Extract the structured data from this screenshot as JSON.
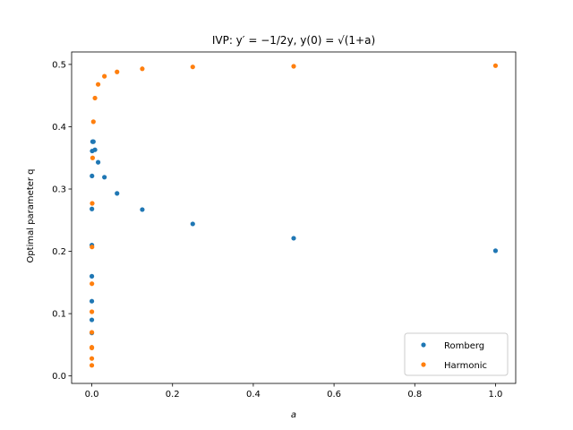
{
  "chart_data": {
    "type": "scatter",
    "title": "IVP: y′ = −1/2y, y(0) = √(1+a)",
    "xlabel": "a",
    "ylabel": "Optimal parameter q",
    "xlim": [
      -0.05,
      1.05
    ],
    "ylim": [
      -0.012,
      0.52
    ],
    "xticks": [
      0.0,
      0.2,
      0.4,
      0.6,
      0.8,
      1.0
    ],
    "xtick_labels": [
      "0.0",
      "0.2",
      "0.4",
      "0.6",
      "0.8",
      "1.0"
    ],
    "yticks": [
      0.0,
      0.1,
      0.2,
      0.3,
      0.4,
      0.5
    ],
    "ytick_labels": [
      "0.0",
      "0.1",
      "0.2",
      "0.3",
      "0.4",
      "0.5"
    ],
    "grid": false,
    "legend_position": "bottom-right",
    "series": [
      {
        "name": "Romberg",
        "color": "#1f77b4",
        "x": [
          1.0,
          0.5,
          0.25,
          0.125,
          0.0625,
          0.03125,
          0.015625,
          0.0078125,
          0.00390625,
          0.001953125,
          0.0009765625,
          0.00048828125,
          0.000244140625,
          0.0001220703125,
          6.103515625e-05,
          3.0517578125e-05,
          1.52587890625e-05,
          7.62939453125e-06
        ],
        "values": [
          0.201,
          0.221,
          0.244,
          0.267,
          0.293,
          0.319,
          0.343,
          0.363,
          0.376,
          0.376,
          0.361,
          0.321,
          0.268,
          0.21,
          0.16,
          0.12,
          0.09,
          0.069
        ]
      },
      {
        "name": "Harmonic",
        "color": "#ff7f0e",
        "x": [
          1.0,
          0.5,
          0.25,
          0.125,
          0.0625,
          0.03125,
          0.015625,
          0.0078125,
          0.00390625,
          0.001953125,
          0.0009765625,
          0.00048828125,
          0.000244140625,
          0.0001220703125,
          6.103515625e-05,
          3.0517578125e-05,
          1.52587890625e-05,
          7.62939453125e-06,
          3.814697265625e-06
        ],
        "values": [
          0.498,
          0.497,
          0.496,
          0.493,
          0.488,
          0.481,
          0.468,
          0.446,
          0.408,
          0.35,
          0.277,
          0.207,
          0.148,
          0.103,
          0.07,
          0.045,
          0.028,
          0.017,
          0.046
        ]
      }
    ]
  }
}
